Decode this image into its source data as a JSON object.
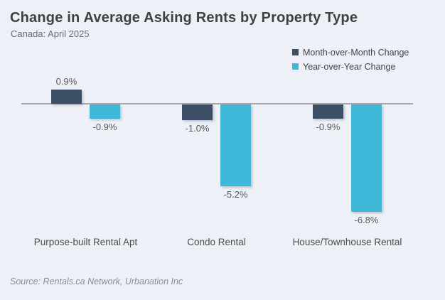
{
  "header": {
    "title": "Change in Average Asking Rents by Property Type",
    "subtitle": "Canada: April 2025"
  },
  "legend": [
    {
      "label": "Month-over-Month Change",
      "color": "#3d4f66"
    },
    {
      "label": "Year-over-Year Change",
      "color": "#3fb7d8"
    }
  ],
  "source": "Source: Rentals.ca Network, Urbanation Inc",
  "chart_data": {
    "type": "bar",
    "title": "Change in Average Asking Rents by Property Type",
    "subtitle": "Canada: April 2025",
    "categories": [
      "Purpose-built Rental Apt",
      "Condo Rental",
      "House/Townhouse Rental"
    ],
    "series": [
      {
        "name": "Month-over-Month Change",
        "color": "#3d4f66",
        "values": [
          0.9,
          -1.0,
          -0.9
        ],
        "labels": [
          "0.9%",
          "-1.0%",
          "-0.9%"
        ]
      },
      {
        "name": "Year-over-Year Change",
        "color": "#3fb7d8",
        "values": [
          -0.9,
          -5.2,
          -6.8
        ],
        "labels": [
          "-0.9%",
          "-5.2%",
          "-6.8%"
        ]
      }
    ],
    "xlabel": "",
    "ylabel": "",
    "ylim": [
      -7.5,
      1.5
    ],
    "baseline": 0,
    "grid": false,
    "value_labels": true,
    "legend_position": "top-right",
    "background_color": "#edf0f6",
    "axis_line_color": "#a7abb0"
  }
}
